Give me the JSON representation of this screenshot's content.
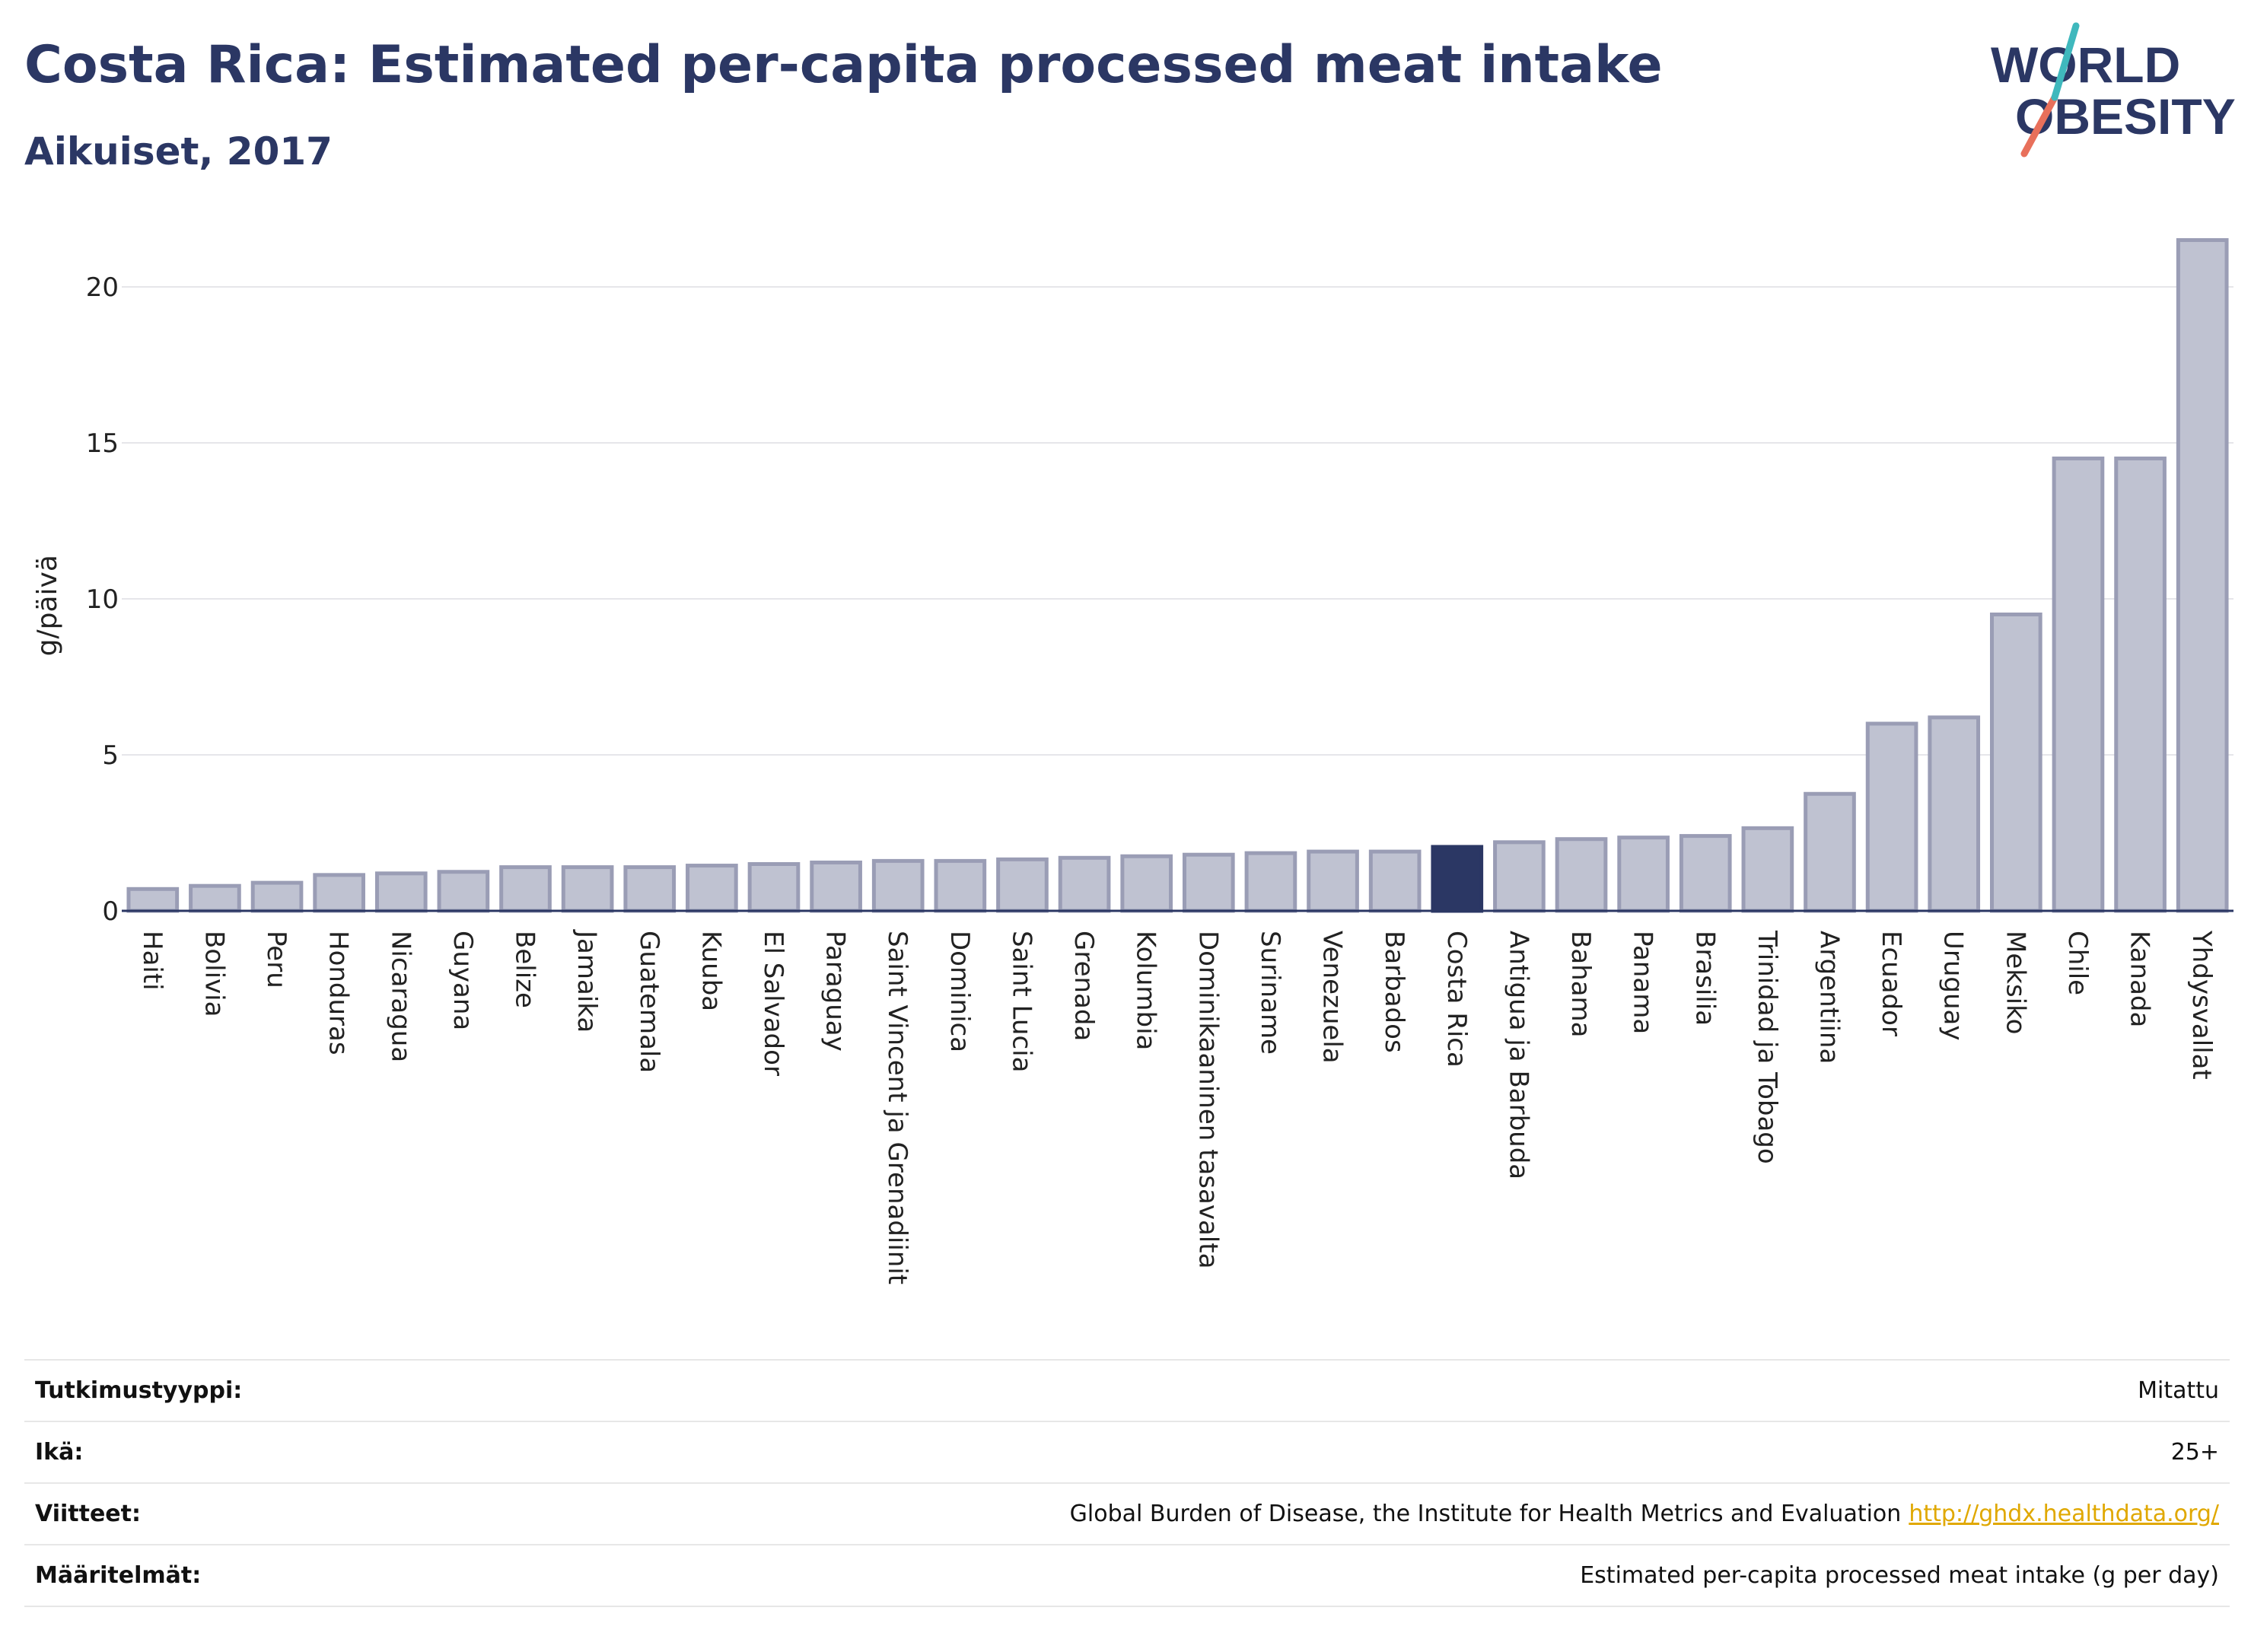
{
  "header": {
    "title": "Costa Rica: Estimated per-capita processed meat intake",
    "subtitle": "Aikuiset, 2017"
  },
  "logo": {
    "line1": "WORLD",
    "line2": "OBESITY"
  },
  "colors": {
    "text_dark": "#2b3764",
    "bar": "#bfc2d1",
    "bar_border": "#9a9db5",
    "highlight": "#2b3764",
    "grid": "#e6e6ea",
    "logo_red": "#e8705b",
    "logo_teal": "#3fb8bd"
  },
  "chart_data": {
    "type": "bar",
    "title": "Costa Rica: Estimated per-capita processed meat intake",
    "subtitle": "Aikuiset, 2017",
    "xlabel": "",
    "ylabel": "g/päivä",
    "ylim": [
      0,
      22.5
    ],
    "yticks": [
      0,
      5,
      10,
      15,
      20
    ],
    "grid": true,
    "highlight": "Costa Rica",
    "categories": [
      "Haiti",
      "Bolivia",
      "Peru",
      "Honduras",
      "Nicaragua",
      "Guyana",
      "Belize",
      "Jamaika",
      "Guatemala",
      "Kuuba",
      "El Salvador",
      "Paraguay",
      "Saint Vincent ja Grenadiinit",
      "Dominica",
      "Saint Lucia",
      "Grenada",
      "Kolumbia",
      "Dominikaaninen tasavalta",
      "Suriname",
      "Venezuela",
      "Barbados",
      "Costa Rica",
      "Antigua ja Barbuda",
      "Bahama",
      "Panama",
      "Brasilia",
      "Trinidad ja Tobago",
      "Argentiina",
      "Ecuador",
      "Uruguay",
      "Meksiko",
      "Chile",
      "Kanada",
      "Yhdysvallat"
    ],
    "values": [
      0.7,
      0.8,
      0.9,
      1.15,
      1.2,
      1.25,
      1.4,
      1.4,
      1.4,
      1.45,
      1.5,
      1.55,
      1.6,
      1.6,
      1.65,
      1.7,
      1.75,
      1.8,
      1.85,
      1.9,
      1.9,
      2.05,
      2.2,
      2.3,
      2.35,
      2.4,
      2.65,
      3.75,
      6.0,
      6.2,
      9.5,
      14.5,
      14.5,
      21.5
    ]
  },
  "info": {
    "rows": [
      {
        "key": "Tutkimustyyppi:",
        "value": "Mitattu"
      },
      {
        "key": "Ikä:",
        "value": "25+"
      },
      {
        "key": "Viitteet:",
        "value": "Global Burden of Disease, the Institute for Health Metrics and Evaluation",
        "link": "http://ghdx.healthdata.org/"
      },
      {
        "key": "Määritelmät:",
        "value": "Estimated per-capita processed meat intake (g per day)"
      }
    ]
  }
}
